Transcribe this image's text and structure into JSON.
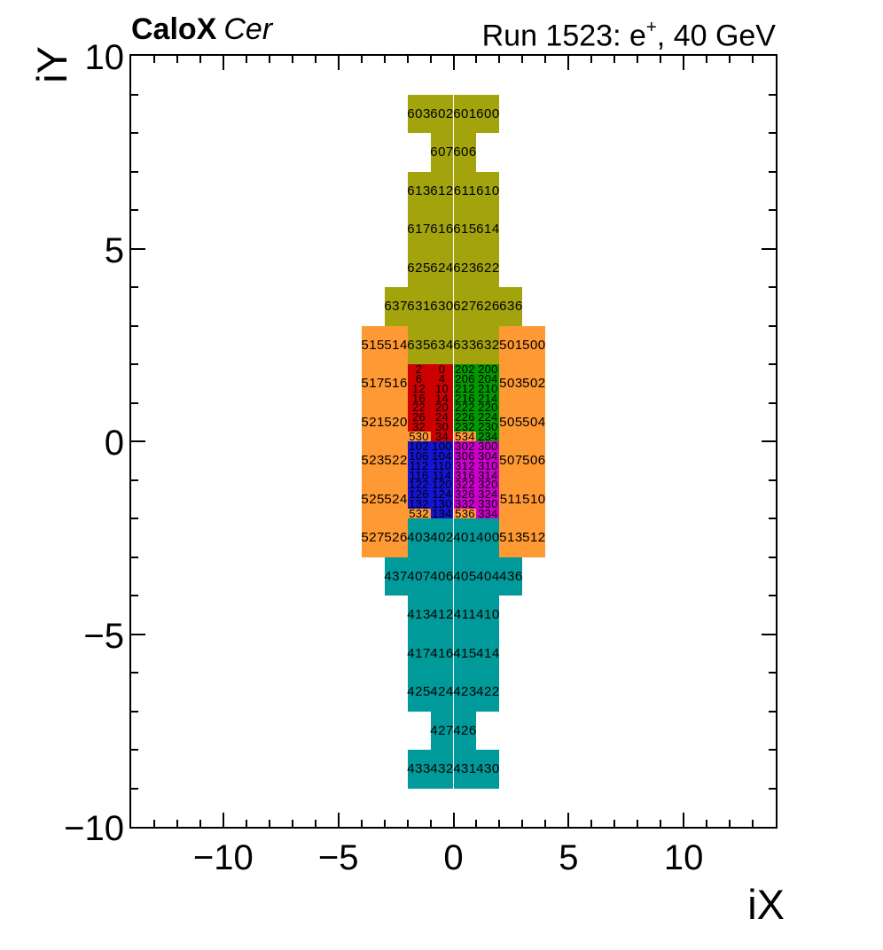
{
  "header": {
    "left_bold": "CaloX",
    "left_italic": "Cer",
    "right_prefix": "Run 1523: e",
    "right_sup": "+",
    "right_suffix": ", 40 GeV"
  },
  "axes": {
    "x": {
      "title": "iX",
      "min": -14,
      "max": 14,
      "minor_step": 1,
      "major": [
        {
          "v": -10,
          "label": "−10"
        },
        {
          "v": -5,
          "label": "−5"
        },
        {
          "v": 0,
          "label": "0"
        },
        {
          "v": 5,
          "label": "5"
        },
        {
          "v": 10,
          "label": "10"
        }
      ]
    },
    "y": {
      "title": "iY",
      "min": -10,
      "max": 10,
      "minor_step": 1,
      "major": [
        {
          "v": 10,
          "label": "10"
        },
        {
          "v": 5,
          "label": "5"
        },
        {
          "v": 0,
          "label": "0"
        },
        {
          "v": -5,
          "label": "−5"
        },
        {
          "v": -10,
          "label": "−10"
        }
      ]
    }
  },
  "colors": {
    "olive": "#a3a30e",
    "orange": "#ff9933",
    "red": "#cc0000",
    "green": "#009900",
    "blue": "#1414d2",
    "magenta": "#cc00cc",
    "teal": "#009a9a",
    "text": "#000000",
    "frame": "#000000",
    "background": "#ffffff"
  },
  "chart_data": {
    "type": "heatmap",
    "title": "CaloX Cer — Run 1523: e+, 40 GeV",
    "xlabel": "iX",
    "ylabel": "iY",
    "x_range": [
      -14,
      14
    ],
    "y_range": [
      -10,
      10
    ],
    "grid": false,
    "legend": "none",
    "cell_format": [
      "x_left",
      "y_top",
      "width",
      "height",
      "color_key",
      "channel_label"
    ],
    "cells": [
      [
        -2,
        9,
        1,
        1,
        "olive",
        "603"
      ],
      [
        -1,
        9,
        1,
        1,
        "olive",
        "602"
      ],
      [
        0,
        9,
        1,
        1,
        "olive",
        "601"
      ],
      [
        1,
        9,
        1,
        1,
        "olive",
        "600"
      ],
      [
        -1,
        8,
        1,
        1,
        "olive",
        "607"
      ],
      [
        0,
        8,
        1,
        1,
        "olive",
        "606"
      ],
      [
        -2,
        7,
        1,
        1,
        "olive",
        "613"
      ],
      [
        -1,
        7,
        1,
        1,
        "olive",
        "612"
      ],
      [
        0,
        7,
        1,
        1,
        "olive",
        "611"
      ],
      [
        1,
        7,
        1,
        1,
        "olive",
        "610"
      ],
      [
        -2,
        6,
        1,
        1,
        "olive",
        "617"
      ],
      [
        -1,
        6,
        1,
        1,
        "olive",
        "616"
      ],
      [
        0,
        6,
        1,
        1,
        "olive",
        "615"
      ],
      [
        1,
        6,
        1,
        1,
        "olive",
        "614"
      ],
      [
        -2,
        5,
        1,
        1,
        "olive",
        "625"
      ],
      [
        -1,
        5,
        1,
        1,
        "olive",
        "624"
      ],
      [
        0,
        5,
        1,
        1,
        "olive",
        "623"
      ],
      [
        1,
        5,
        1,
        1,
        "olive",
        "622"
      ],
      [
        -3,
        4,
        1,
        1,
        "olive",
        "637"
      ],
      [
        -2,
        4,
        1,
        1,
        "olive",
        "631"
      ],
      [
        -1,
        4,
        1,
        1,
        "olive",
        "630"
      ],
      [
        0,
        4,
        1,
        1,
        "olive",
        "627"
      ],
      [
        1,
        4,
        1,
        1,
        "olive",
        "626"
      ],
      [
        2,
        4,
        1,
        1,
        "olive",
        "636"
      ],
      [
        -2,
        3,
        1,
        1,
        "olive",
        "635"
      ],
      [
        -1,
        3,
        1,
        1,
        "olive",
        "634"
      ],
      [
        0,
        3,
        1,
        1,
        "olive",
        "633"
      ],
      [
        1,
        3,
        1,
        1,
        "olive",
        "632"
      ],
      [
        -4,
        3,
        1,
        1,
        "orange",
        "515"
      ],
      [
        -3,
        3,
        1,
        1,
        "orange",
        "514"
      ],
      [
        2,
        3,
        1,
        1,
        "orange",
        "501"
      ],
      [
        3,
        3,
        1,
        1,
        "orange",
        "500"
      ],
      [
        -4,
        2,
        1,
        1,
        "orange",
        "517"
      ],
      [
        -3,
        2,
        1,
        1,
        "orange",
        "516"
      ],
      [
        2,
        2,
        1,
        1,
        "orange",
        "503"
      ],
      [
        3,
        2,
        1,
        1,
        "orange",
        "502"
      ],
      [
        -4,
        1,
        1,
        1,
        "orange",
        "521"
      ],
      [
        -3,
        1,
        1,
        1,
        "orange",
        "520"
      ],
      [
        2,
        1,
        1,
        1,
        "orange",
        "505"
      ],
      [
        3,
        1,
        1,
        1,
        "orange",
        "504"
      ],
      [
        -4,
        0,
        1,
        1,
        "orange",
        "523"
      ],
      [
        -3,
        0,
        1,
        1,
        "orange",
        "522"
      ],
      [
        2,
        0,
        1,
        1,
        "orange",
        "507"
      ],
      [
        3,
        0,
        1,
        1,
        "orange",
        "506"
      ],
      [
        -4,
        -1,
        1,
        1,
        "orange",
        "525"
      ],
      [
        -3,
        -1,
        1,
        1,
        "orange",
        "524"
      ],
      [
        2,
        -1,
        1,
        1,
        "orange",
        "511"
      ],
      [
        3,
        -1,
        1,
        1,
        "orange",
        "510"
      ],
      [
        -4,
        -2,
        1,
        1,
        "orange",
        "527"
      ],
      [
        -3,
        -2,
        1,
        1,
        "orange",
        "526"
      ],
      [
        2,
        -2,
        1,
        1,
        "orange",
        "513"
      ],
      [
        3,
        -2,
        1,
        1,
        "orange",
        "512"
      ],
      [
        -2,
        2,
        1,
        0.25,
        "red",
        "2"
      ],
      [
        -1,
        2,
        1,
        0.25,
        "red",
        "0"
      ],
      [
        0,
        2,
        1,
        0.25,
        "green",
        "202"
      ],
      [
        1,
        2,
        1,
        0.25,
        "green",
        "200"
      ],
      [
        -2,
        1.75,
        1,
        0.25,
        "red",
        "6"
      ],
      [
        -1,
        1.75,
        1,
        0.25,
        "red",
        "4"
      ],
      [
        0,
        1.75,
        1,
        0.25,
        "green",
        "206"
      ],
      [
        1,
        1.75,
        1,
        0.25,
        "green",
        "204"
      ],
      [
        -2,
        1.5,
        1,
        0.25,
        "red",
        "12"
      ],
      [
        -1,
        1.5,
        1,
        0.25,
        "red",
        "10"
      ],
      [
        0,
        1.5,
        1,
        0.25,
        "green",
        "212"
      ],
      [
        1,
        1.5,
        1,
        0.25,
        "green",
        "210"
      ],
      [
        -2,
        1.25,
        1,
        0.25,
        "red",
        "16"
      ],
      [
        -1,
        1.25,
        1,
        0.25,
        "red",
        "14"
      ],
      [
        0,
        1.25,
        1,
        0.25,
        "green",
        "216"
      ],
      [
        1,
        1.25,
        1,
        0.25,
        "green",
        "214"
      ],
      [
        -2,
        1,
        1,
        0.25,
        "red",
        "22"
      ],
      [
        -1,
        1,
        1,
        0.25,
        "red",
        "20"
      ],
      [
        0,
        1,
        1,
        0.25,
        "green",
        "222"
      ],
      [
        1,
        1,
        1,
        0.25,
        "green",
        "220"
      ],
      [
        -2,
        0.75,
        1,
        0.25,
        "red",
        "26"
      ],
      [
        -1,
        0.75,
        1,
        0.25,
        "red",
        "24"
      ],
      [
        0,
        0.75,
        1,
        0.25,
        "green",
        "226"
      ],
      [
        1,
        0.75,
        1,
        0.25,
        "green",
        "224"
      ],
      [
        -2,
        0.5,
        1,
        0.25,
        "red",
        "32"
      ],
      [
        -1,
        0.5,
        1,
        0.25,
        "red",
        "30"
      ],
      [
        0,
        0.5,
        1,
        0.25,
        "green",
        "232"
      ],
      [
        1,
        0.5,
        1,
        0.25,
        "green",
        "230"
      ],
      [
        -2,
        0.25,
        1,
        0.25,
        "orange",
        "530"
      ],
      [
        -1,
        0.25,
        1,
        0.25,
        "red",
        "34"
      ],
      [
        0,
        0.25,
        1,
        0.25,
        "orange",
        "534"
      ],
      [
        1,
        0.25,
        1,
        0.25,
        "green",
        "234"
      ],
      [
        -2,
        0,
        1,
        0.25,
        "blue",
        "102"
      ],
      [
        -1,
        0,
        1,
        0.25,
        "blue",
        "100"
      ],
      [
        0,
        0,
        1,
        0.25,
        "magenta",
        "302"
      ],
      [
        1,
        0,
        1,
        0.25,
        "magenta",
        "300"
      ],
      [
        -2,
        -0.25,
        1,
        0.25,
        "blue",
        "106"
      ],
      [
        -1,
        -0.25,
        1,
        0.25,
        "blue",
        "104"
      ],
      [
        0,
        -0.25,
        1,
        0.25,
        "magenta",
        "306"
      ],
      [
        1,
        -0.25,
        1,
        0.25,
        "magenta",
        "304"
      ],
      [
        -2,
        -0.5,
        1,
        0.25,
        "blue",
        "112"
      ],
      [
        -1,
        -0.5,
        1,
        0.25,
        "blue",
        "110"
      ],
      [
        0,
        -0.5,
        1,
        0.25,
        "magenta",
        "312"
      ],
      [
        1,
        -0.5,
        1,
        0.25,
        "magenta",
        "310"
      ],
      [
        -2,
        -0.75,
        1,
        0.25,
        "blue",
        "116"
      ],
      [
        -1,
        -0.75,
        1,
        0.25,
        "blue",
        "114"
      ],
      [
        0,
        -0.75,
        1,
        0.25,
        "magenta",
        "316"
      ],
      [
        1,
        -0.75,
        1,
        0.25,
        "magenta",
        "314"
      ],
      [
        -2,
        -1,
        1,
        0.25,
        "blue",
        "122"
      ],
      [
        -1,
        -1,
        1,
        0.25,
        "blue",
        "120"
      ],
      [
        0,
        -1,
        1,
        0.25,
        "magenta",
        "322"
      ],
      [
        1,
        -1,
        1,
        0.25,
        "magenta",
        "320"
      ],
      [
        -2,
        -1.25,
        1,
        0.25,
        "blue",
        "126"
      ],
      [
        -1,
        -1.25,
        1,
        0.25,
        "blue",
        "124"
      ],
      [
        0,
        -1.25,
        1,
        0.25,
        "magenta",
        "326"
      ],
      [
        1,
        -1.25,
        1,
        0.25,
        "magenta",
        "324"
      ],
      [
        -2,
        -1.5,
        1,
        0.25,
        "blue",
        "132"
      ],
      [
        -1,
        -1.5,
        1,
        0.25,
        "blue",
        "130"
      ],
      [
        0,
        -1.5,
        1,
        0.25,
        "magenta",
        "332"
      ],
      [
        1,
        -1.5,
        1,
        0.25,
        "magenta",
        "330"
      ],
      [
        -2,
        -1.75,
        1,
        0.25,
        "orange",
        "532"
      ],
      [
        -1,
        -1.75,
        1,
        0.25,
        "blue",
        "134"
      ],
      [
        0,
        -1.75,
        1,
        0.25,
        "orange",
        "536"
      ],
      [
        1,
        -1.75,
        1,
        0.25,
        "magenta",
        "334"
      ],
      [
        -2,
        -2,
        1,
        1,
        "teal",
        "403"
      ],
      [
        -1,
        -2,
        1,
        1,
        "teal",
        "402"
      ],
      [
        0,
        -2,
        1,
        1,
        "teal",
        "401"
      ],
      [
        1,
        -2,
        1,
        1,
        "teal",
        "400"
      ],
      [
        -3,
        -3,
        1,
        1,
        "teal",
        "437"
      ],
      [
        -2,
        -3,
        1,
        1,
        "teal",
        "407"
      ],
      [
        -1,
        -3,
        1,
        1,
        "teal",
        "406"
      ],
      [
        0,
        -3,
        1,
        1,
        "teal",
        "405"
      ],
      [
        1,
        -3,
        1,
        1,
        "teal",
        "404"
      ],
      [
        2,
        -3,
        1,
        1,
        "teal",
        "436"
      ],
      [
        -2,
        -4,
        1,
        1,
        "teal",
        "413"
      ],
      [
        -1,
        -4,
        1,
        1,
        "teal",
        "412"
      ],
      [
        0,
        -4,
        1,
        1,
        "teal",
        "411"
      ],
      [
        1,
        -4,
        1,
        1,
        "teal",
        "410"
      ],
      [
        -2,
        -5,
        1,
        1,
        "teal",
        "417"
      ],
      [
        -1,
        -5,
        1,
        1,
        "teal",
        "416"
      ],
      [
        0,
        -5,
        1,
        1,
        "teal",
        "415"
      ],
      [
        1,
        -5,
        1,
        1,
        "teal",
        "414"
      ],
      [
        -2,
        -6,
        1,
        1,
        "teal",
        "425"
      ],
      [
        -1,
        -6,
        1,
        1,
        "teal",
        "424"
      ],
      [
        0,
        -6,
        1,
        1,
        "teal",
        "423"
      ],
      [
        1,
        -6,
        1,
        1,
        "teal",
        "422"
      ],
      [
        -1,
        -7,
        1,
        1,
        "teal",
        "427"
      ],
      [
        0,
        -7,
        1,
        1,
        "teal",
        "426"
      ],
      [
        -2,
        -8,
        1,
        1,
        "teal",
        "433"
      ],
      [
        -1,
        -8,
        1,
        1,
        "teal",
        "432"
      ],
      [
        0,
        -8,
        1,
        1,
        "teal",
        "431"
      ],
      [
        1,
        -8,
        1,
        1,
        "teal",
        "430"
      ]
    ]
  }
}
